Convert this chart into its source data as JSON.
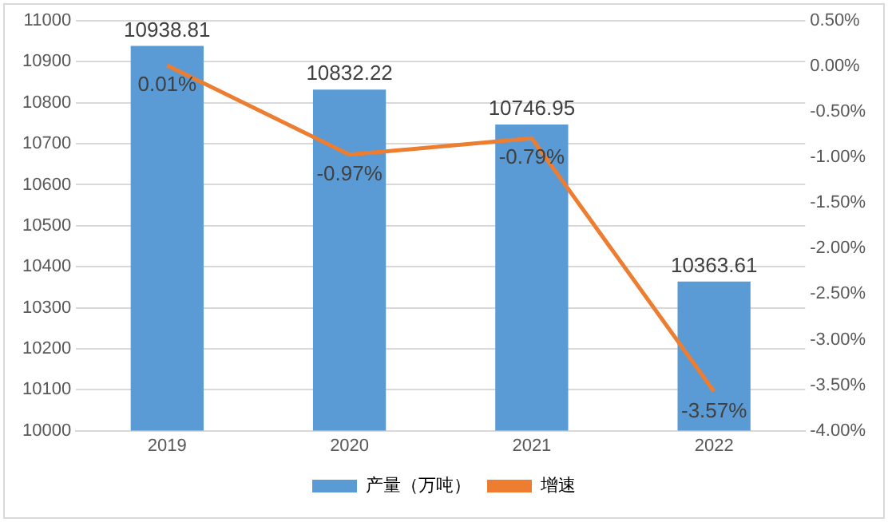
{
  "chart_data": {
    "type": "bar",
    "categories": [
      "2019",
      "2020",
      "2021",
      "2022"
    ],
    "series": [
      {
        "name": "产量（万吨）",
        "color": "#5b9bd5",
        "values": [
          10938.81,
          10832.22,
          10746.95,
          10363.61
        ],
        "value_labels": [
          "10938.81",
          "10832.22",
          "10746.95",
          "10363.61"
        ]
      },
      {
        "name": "增速",
        "type": "line",
        "axis": "y2",
        "color": "#ed7d31",
        "values": [
          0.01,
          -0.97,
          -0.79,
          -3.57
        ],
        "value_labels": [
          "0.01%",
          "-0.97%",
          "-0.79%",
          "-3.57%"
        ]
      }
    ],
    "ylim": [
      10000,
      11000
    ],
    "yticks": [
      10000,
      10100,
      10200,
      10300,
      10400,
      10500,
      10600,
      10700,
      10800,
      10900,
      11000
    ],
    "y2lim": [
      -4,
      0.5
    ],
    "y2ticks": [
      {
        "value": -4,
        "label": "-4.00%"
      },
      {
        "value": -3.5,
        "label": "-3.50%"
      },
      {
        "value": -3,
        "label": "-3.00%"
      },
      {
        "value": -2.5,
        "label": "-2.50%"
      },
      {
        "value": -2,
        "label": "-2.00%"
      },
      {
        "value": -1.5,
        "label": "-1.50%"
      },
      {
        "value": -1,
        "label": "-1.00%"
      },
      {
        "value": -0.5,
        "label": "-0.50%"
      },
      {
        "value": 0,
        "label": "0.00%"
      },
      {
        "value": 0.5,
        "label": "0.50%"
      }
    ],
    "grid": "y",
    "legend": "bottom",
    "marker": "none",
    "line_style": "solid"
  }
}
